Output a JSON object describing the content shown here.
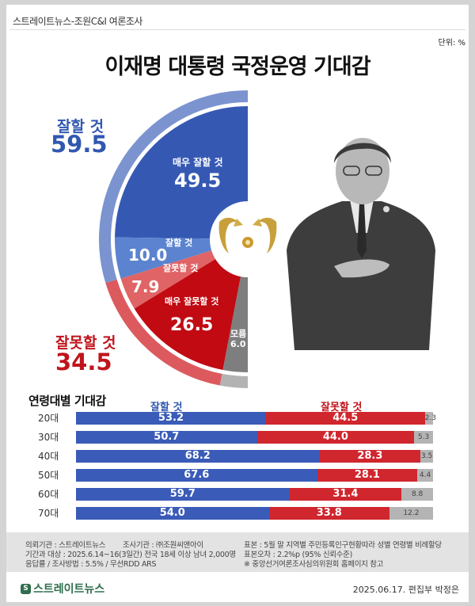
{
  "header": {
    "source": "스트레이트뉴스-조원C&I 여론조사",
    "unit": "단위: %",
    "title": "이재명 대통령 국정운영 기대감"
  },
  "summary": {
    "good_label": "잘할 것",
    "good_value": "59.5",
    "bad_label": "잘못할 것",
    "bad_value": "34.5"
  },
  "donut_labels": {
    "very_good_label": "매우 잘할 것",
    "very_good_value": "49.5",
    "good_label": "잘할 것",
    "good_value": "10.0",
    "bad_label": "잘못할 것",
    "bad_value": "7.9",
    "very_bad_label": "매우 잘못할 것",
    "very_bad_value": "26.5",
    "unknown_label": "모름",
    "unknown_value": "6.0"
  },
  "age_section": {
    "title": "연령대별 기대감",
    "col_good": "잘할 것",
    "col_bad": "잘못할 것",
    "rows": [
      {
        "age": "20대",
        "good": "53.2",
        "bad": "44.5",
        "unknown": "2.3"
      },
      {
        "age": "30대",
        "good": "50.7",
        "bad": "44.0",
        "unknown": "5.3"
      },
      {
        "age": "40대",
        "good": "68.2",
        "bad": "28.3",
        "unknown": "3.5"
      },
      {
        "age": "50대",
        "good": "67.6",
        "bad": "28.1",
        "unknown": "4.4"
      },
      {
        "age": "60대",
        "good": "59.7",
        "bad": "31.4",
        "unknown": "8.8"
      },
      {
        "age": "70대",
        "good": "54.0",
        "bad": "33.8",
        "unknown": "12.2"
      }
    ]
  },
  "footer": {
    "line1_left": "의뢰기관 : 스트레이트뉴스        조사기관 : ㈜조원씨앤아이",
    "line2_left": "기간과 대상 : 2025.6.14~16(3일간)  전국 18세 이상 남녀 2,000명",
    "line3_left": "응답률 / 조사방법 : 5.5% / 무선RDD ARS",
    "line1_right": "표본 : 5월 말 지역별 주민등록인구현황따라 성별 연령별 비례할당",
    "line2_right": "표본오차 : 2.2%p (95% 신뢰수준)",
    "line3_right": "※ 중앙선거여론조사심의위원회 홈페이지 참고",
    "logo_text": "스트레이트뉴스",
    "date_editor": "2025.06.17. 편집부 박정은"
  },
  "colors": {
    "very_good": "#3559b3",
    "good": "#5b83cf",
    "outer_good": "#7b93cf",
    "bad": "#e06466",
    "very_bad": "#c10a12",
    "outer_bad": "#dc5a5e",
    "unknown": "#7e7e7e",
    "outer_unknown": "#b3b3b3"
  },
  "chart_data": [
    {
      "type": "pie",
      "title": "이재명 대통령 국정운영 기대감",
      "unit": "%",
      "shape": "half-donut (left half)",
      "inner_ring": {
        "categories": [
          "매우 잘할 것",
          "잘할 것",
          "잘못할 것",
          "매우 잘못할 것",
          "모름"
        ],
        "values": [
          49.5,
          10.0,
          7.9,
          26.5,
          6.0
        ]
      },
      "outer_ring": {
        "categories": [
          "잘할 것",
          "잘못할 것",
          "모름"
        ],
        "values": [
          59.5,
          34.5,
          6.0
        ]
      }
    },
    {
      "type": "bar",
      "orientation": "horizontal-stacked",
      "title": "연령대별 기대감",
      "categories": [
        "20대",
        "30대",
        "40대",
        "50대",
        "60대",
        "70대"
      ],
      "series": [
        {
          "name": "잘할 것",
          "values": [
            53.2,
            50.7,
            68.2,
            67.6,
            59.7,
            54.0
          ]
        },
        {
          "name": "잘못할 것",
          "values": [
            44.5,
            44.0,
            28.3,
            28.1,
            31.4,
            33.8
          ]
        },
        {
          "name": "모름",
          "values": [
            2.3,
            5.3,
            3.5,
            4.4,
            8.8,
            12.2
          ]
        }
      ],
      "xlim": [
        0,
        100
      ]
    }
  ]
}
